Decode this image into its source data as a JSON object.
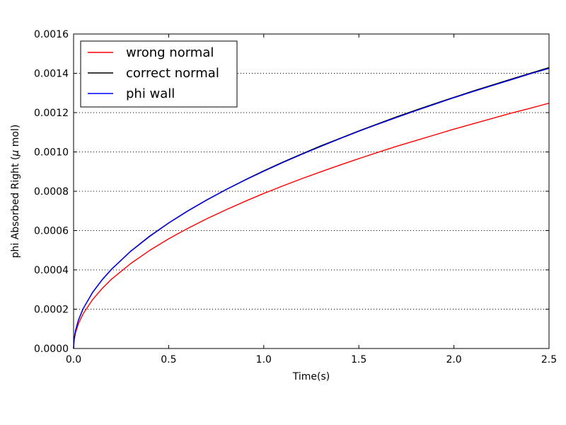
{
  "chart_data": {
    "type": "line",
    "xlabel": "Time(s)",
    "ylabel": "phi Absorbed Right (",
    "ylabel_mu": "μ",
    "ylabel_unit": " mol)",
    "xlim": [
      0.0,
      2.5
    ],
    "ylim": [
      0.0,
      0.0016
    ],
    "x_ticks": [
      "0.0",
      "0.5",
      "1.0",
      "1.5",
      "2.0",
      "2.5"
    ],
    "x_tick_values": [
      0.0,
      0.5,
      1.0,
      1.5,
      2.0,
      2.5
    ],
    "y_ticks": [
      "0.0000",
      "0.0002",
      "0.0004",
      "0.0006",
      "0.0008",
      "0.0010",
      "0.0012",
      "0.0014",
      "0.0016"
    ],
    "y_tick_values": [
      0.0,
      0.0002,
      0.0004,
      0.0006,
      0.0008,
      0.001,
      0.0012,
      0.0014,
      0.0016
    ],
    "grid": "horizontal dotted",
    "legend_position": "top-left",
    "x": [
      0.0,
      0.0025,
      0.01,
      0.025,
      0.05,
      0.1,
      0.15,
      0.2,
      0.3,
      0.4,
      0.5,
      0.6,
      0.7,
      0.8,
      0.9,
      1.0,
      1.1,
      1.2,
      1.3,
      1.4,
      1.5,
      1.6,
      1.7,
      1.8,
      1.9,
      2.0,
      2.1,
      2.2,
      2.3,
      2.4,
      2.5
    ],
    "series": [
      {
        "name": "wrong normal",
        "color": "#ff0000",
        "values": [
          0.0,
          3.94e-05,
          7.89e-05,
          0.000125,
          0.000176,
          0.000249,
          0.000305,
          0.000353,
          0.000432,
          0.000499,
          0.000558,
          0.000611,
          0.00066,
          0.000705,
          0.000748,
          0.000789,
          0.000827,
          0.000864,
          0.000899,
          0.000933,
          0.000966,
          0.000998,
          0.001029,
          0.001058,
          0.001087,
          0.001116,
          0.001143,
          0.00117,
          0.001197,
          0.001222,
          0.001248
        ]
      },
      {
        "name": "correct normal",
        "color": "#000000",
        "values": [
          0.0,
          4.52e-05,
          9.04e-05,
          0.000143,
          0.000202,
          0.000286,
          0.00035,
          0.000404,
          0.000495,
          0.000572,
          0.000639,
          0.0007,
          0.000756,
          0.000808,
          0.000857,
          0.000904,
          0.000948,
          0.00099,
          0.001031,
          0.001069,
          0.001107,
          0.001143,
          0.001179,
          0.001213,
          0.001246,
          0.001278,
          0.00131,
          0.00134,
          0.00137,
          0.0014,
          0.001429
        ]
      },
      {
        "name": "phi wall",
        "color": "#0000ff",
        "values": [
          0.0,
          4.51e-05,
          9.02e-05,
          0.000143,
          0.000202,
          0.000285,
          0.000349,
          0.000403,
          0.000494,
          0.00057,
          0.000638,
          0.000699,
          0.000755,
          0.000807,
          0.000856,
          0.000902,
          0.000946,
          0.000988,
          0.001028,
          0.001067,
          0.001105,
          0.001141,
          0.001176,
          0.00121,
          0.001243,
          0.001276,
          0.001307,
          0.001337,
          0.001367,
          0.001397,
          0.001425
        ]
      }
    ]
  }
}
